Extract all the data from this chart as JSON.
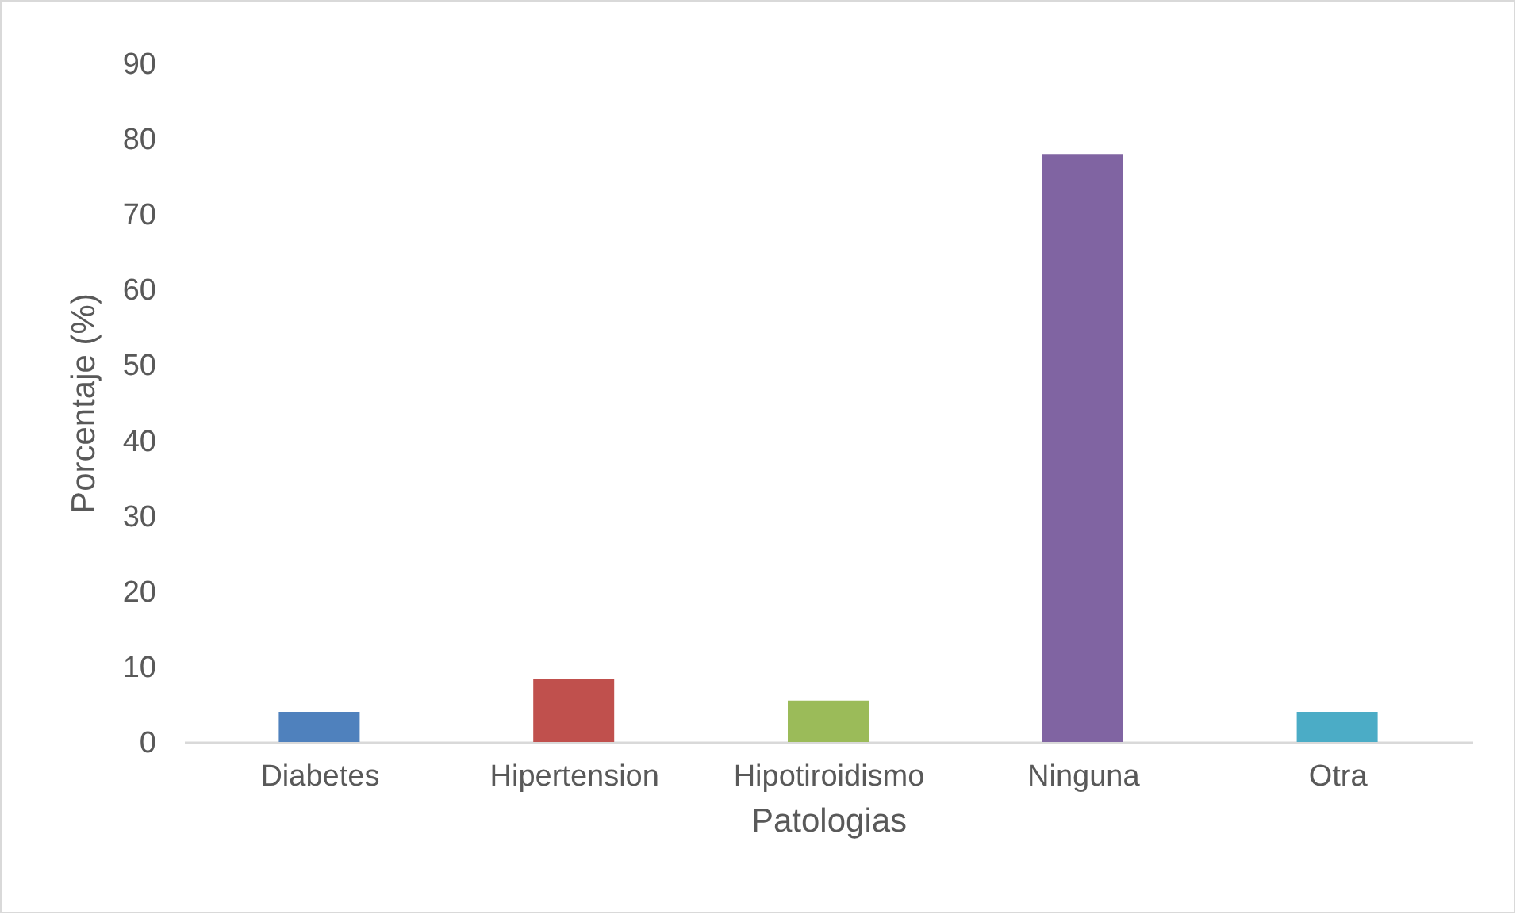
{
  "chart_data": {
    "type": "bar",
    "xlabel": "Patologias",
    "ylabel": "Porcentaje (%)",
    "categories": [
      "Diabetes",
      "Hipertension",
      "Hipotiroidismo",
      "Ninguna",
      "Otra"
    ],
    "values": [
      4.0,
      8.3,
      5.5,
      78,
      4.0
    ],
    "colors": [
      "#4f81bd",
      "#c0504d",
      "#9bbb59",
      "#8064a2",
      "#4bacc6"
    ],
    "ylim": [
      0,
      90
    ],
    "yticks": [
      0,
      10,
      20,
      30,
      40,
      50,
      60,
      70,
      80,
      90
    ],
    "grid": false
  }
}
